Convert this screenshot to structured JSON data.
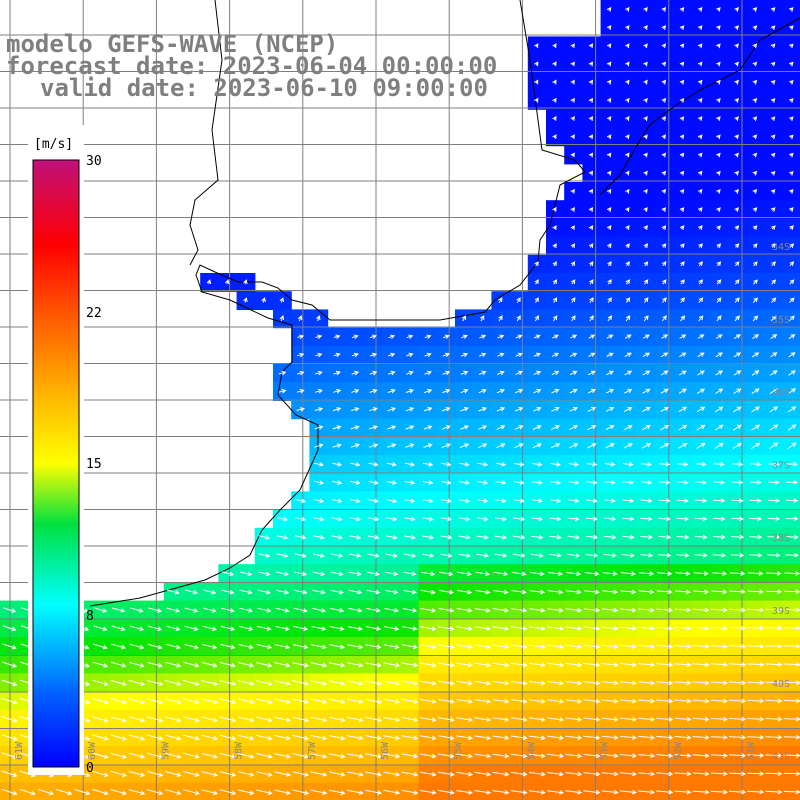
{
  "header": {
    "model_line": "modelo GEFS-WAVE (NCEP)",
    "forecast_line": "forecast date: 2023-06-04 00:00:00",
    "valid_line": "valid date: 2023-06-10 09:00:00"
  },
  "colorbar": {
    "unit": "[m/s]",
    "ticks": [
      "30",
      "22",
      "15",
      "8",
      "0"
    ],
    "tick_values": [
      30,
      22,
      15,
      8,
      0
    ],
    "range": [
      0,
      30
    ]
  },
  "axes": {
    "lon_labels": [
      "61W",
      "60W",
      "59W",
      "58W",
      "57W",
      "56W",
      "55W",
      "54W",
      "53W",
      "52W",
      "51W"
    ],
    "lat_labels": [
      "34S",
      "35S",
      "36S",
      "37S",
      "38S",
      "39S",
      "40S",
      "41S"
    ]
  },
  "legend_colors": {
    "stops": [
      "#0000ff",
      "#0080ff",
      "#00ffff",
      "#00ff00",
      "#ffff00",
      "#ff8000",
      "#ff0000",
      "#c00080"
    ]
  }
}
